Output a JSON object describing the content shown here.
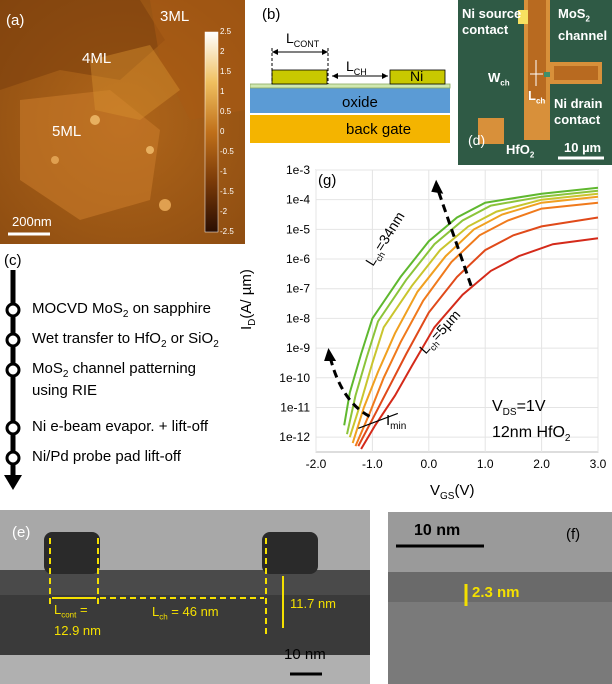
{
  "panel_a": {
    "label": "(a)",
    "regions": [
      "3ML",
      "4ML",
      "5ML"
    ],
    "scalebar": "200nm",
    "colorbar_ticks": [
      "2.5",
      "2",
      "1.5",
      "1",
      "0.5",
      "0",
      "-0.5",
      "-1",
      "-1.5",
      "-2",
      "-2.5"
    ]
  },
  "panel_b": {
    "label": "(b)",
    "lcont": "L",
    "lcont_sub": "CONT",
    "lch": "L",
    "lch_sub": "CH",
    "ni": "Ni",
    "oxide": "oxide",
    "back_gate": "back gate"
  },
  "panel_d": {
    "label": "(d)",
    "ni_source": [
      "Ni source",
      "contact"
    ],
    "mos2": "MoS",
    "mos2_sub": "2",
    "mos2_line2": "channel",
    "wch": "W",
    "wch_sub": "ch",
    "lch": "L",
    "lch_sub": "ch",
    "ni_drain": [
      "Ni drain",
      "contact"
    ],
    "hfo2": "HfO",
    "hfo2_sub": "2",
    "scalebar": "10 µm"
  },
  "panel_c": {
    "label": "(c)",
    "steps": [
      {
        "text": "MOCVD MoS",
        "sub": "2",
        "rest": " on sapphire"
      },
      {
        "text": "Wet transfer to HfO",
        "sub": "2",
        "rest": " or SiO",
        "sub2": "2"
      },
      {
        "text": "MoS",
        "sub": "2",
        "rest": " channel patterning"
      },
      {
        "text": "using RIE"
      },
      {
        "text": "Ni e-beam evapor. + lift-off"
      },
      {
        "text": "Ni/Pd probe pad lift-off"
      }
    ]
  },
  "panel_g": {
    "label": "(g)",
    "y_axis_label": "I",
    "y_axis_sub": "D",
    "y_axis_rest": "(A/ µm)",
    "x_axis_label": "V",
    "x_axis_sub": "GS",
    "x_axis_rest": "(V)",
    "annotations": {
      "lch_short": "L",
      "lch_short_sub": "ch",
      "lch_short_val": "=34nm",
      "lch_long": "L",
      "lch_long_sub": "ch",
      "lch_long_val": "=5µm",
      "imin": "I",
      "imin_sub": "min",
      "vds": "V",
      "vds_sub": "DS",
      "vds_val": "=1V",
      "oxide": "12nm HfO",
      "oxide_sub": "2"
    }
  },
  "chart_data": {
    "type": "line",
    "x_ticks": [
      "-2.0",
      "-1.0",
      "0.0",
      "1.0",
      "2.0",
      "3.0"
    ],
    "y_ticks": [
      "1e-3",
      "1e-4",
      "1e-5",
      "1e-6",
      "1e-7",
      "1e-8",
      "1e-9",
      "1e-10",
      "1e-11",
      "1e-12"
    ],
    "xlim": [
      -2.0,
      3.0
    ],
    "ylim_log10": [
      -12.5,
      -3
    ],
    "series": [
      {
        "color": "#5fb82f",
        "points": [
          [
            -1.5,
            -11.6
          ],
          [
            -1.4,
            -10.5
          ],
          [
            -1.2,
            -9.2
          ],
          [
            -1.0,
            -8.0
          ],
          [
            -0.5,
            -6.6
          ],
          [
            0,
            -5.4
          ],
          [
            0.5,
            -4.6
          ],
          [
            1.0,
            -4.1
          ],
          [
            2.0,
            -3.8
          ],
          [
            3.0,
            -3.6
          ]
        ]
      },
      {
        "color": "#8cc43a",
        "points": [
          [
            -1.45,
            -11.9
          ],
          [
            -1.3,
            -10.6
          ],
          [
            -1.1,
            -9.3
          ],
          [
            -0.9,
            -8.1
          ],
          [
            -0.4,
            -6.7
          ],
          [
            0.1,
            -5.5
          ],
          [
            0.6,
            -4.7
          ],
          [
            1.1,
            -4.2
          ],
          [
            2.0,
            -3.9
          ],
          [
            3.0,
            -3.7
          ]
        ]
      },
      {
        "color": "#c9c52e",
        "points": [
          [
            -1.4,
            -12.0
          ],
          [
            -1.2,
            -10.8
          ],
          [
            -1.0,
            -9.5
          ],
          [
            -0.8,
            -8.3
          ],
          [
            -0.3,
            -6.9
          ],
          [
            0.2,
            -5.7
          ],
          [
            0.7,
            -4.9
          ],
          [
            1.2,
            -4.4
          ],
          [
            2.0,
            -4.0
          ],
          [
            3.0,
            -3.8
          ]
        ]
      },
      {
        "color": "#f0a020",
        "points": [
          [
            -1.35,
            -12.2
          ],
          [
            -1.15,
            -11.0
          ],
          [
            -0.9,
            -9.8
          ],
          [
            -0.6,
            -8.5
          ],
          [
            -0.2,
            -7.1
          ],
          [
            0.3,
            -5.9
          ],
          [
            0.8,
            -5.0
          ],
          [
            1.3,
            -4.5
          ],
          [
            2.0,
            -4.1
          ],
          [
            3.0,
            -3.9
          ]
        ]
      },
      {
        "color": "#f07a1c",
        "points": [
          [
            -1.3,
            -12.3
          ],
          [
            -1.05,
            -11.2
          ],
          [
            -0.8,
            -10.0
          ],
          [
            -0.5,
            -8.8
          ],
          [
            -0.1,
            -7.4
          ],
          [
            0.4,
            -6.1
          ],
          [
            0.9,
            -5.2
          ],
          [
            1.4,
            -4.7
          ],
          [
            2.0,
            -4.3
          ],
          [
            3.0,
            -4.1
          ]
        ]
      },
      {
        "color": "#e04a1a",
        "points": [
          [
            -1.25,
            -12.3
          ],
          [
            -1.0,
            -11.4
          ],
          [
            -0.7,
            -10.3
          ],
          [
            -0.4,
            -9.2
          ],
          [
            0,
            -7.8
          ],
          [
            0.5,
            -6.6
          ],
          [
            1.0,
            -5.7
          ],
          [
            1.5,
            -5.2
          ],
          [
            2.0,
            -4.9
          ],
          [
            3.0,
            -4.6
          ]
        ]
      },
      {
        "color": "#d42a1a",
        "points": [
          [
            -1.2,
            -12.4
          ],
          [
            -0.95,
            -11.6
          ],
          [
            -0.6,
            -10.6
          ],
          [
            -0.3,
            -9.6
          ],
          [
            0.1,
            -8.3
          ],
          [
            0.6,
            -7.2
          ],
          [
            1.1,
            -6.4
          ],
          [
            1.6,
            -5.9
          ],
          [
            2.2,
            -5.5
          ],
          [
            3.0,
            -5.3
          ]
        ]
      }
    ]
  },
  "panel_e": {
    "label": "(e)",
    "lcont": "L",
    "lcont_sub": "cont",
    "lcont_val": " =",
    "lcont_val2": "12.9 nm",
    "lch": "L",
    "lch_sub": "ch",
    "lch_val": " = 46 nm",
    "thickness": "11.7 nm",
    "scalebar": "10 nm"
  },
  "panel_f": {
    "label": "(f)",
    "scalebar": "10 nm",
    "thickness": "2.3 nm"
  }
}
